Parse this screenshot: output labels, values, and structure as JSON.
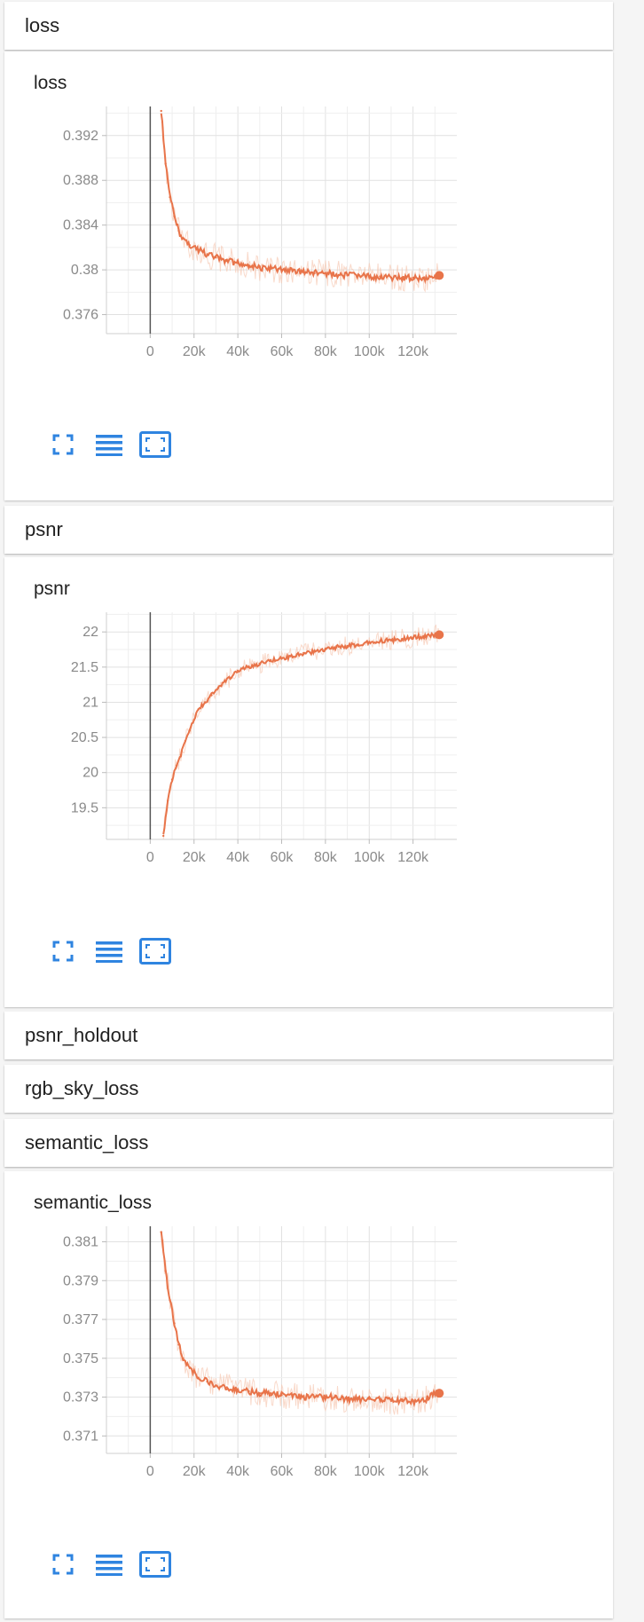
{
  "colors": {
    "series": "#e8744a",
    "series_raw": "#f6c9b4",
    "icon": "#2f84e0",
    "grid": "#e1e1e1",
    "axis": "#555555"
  },
  "sections": [
    {
      "header": "loss",
      "card_title": "loss"
    },
    {
      "header": "psnr",
      "card_title": "psnr"
    },
    {
      "header": "psnr_holdout"
    },
    {
      "header": "rgb_sky_loss"
    },
    {
      "header": "semantic_loss",
      "card_title": "semantic_loss"
    }
  ],
  "controls": {
    "icons": [
      "fullscreen-icon",
      "data-list-icon",
      "fit-domain-icon"
    ]
  },
  "chart_data": [
    {
      "type": "line",
      "title": "loss",
      "xlabel": "",
      "ylabel": "",
      "xlim": [
        -20000,
        140000
      ],
      "ylim": [
        0.3743,
        0.3946
      ],
      "x_ticks": [
        0,
        20000,
        40000,
        60000,
        80000,
        100000,
        120000
      ],
      "x_tick_labels": [
        "0",
        "20k",
        "40k",
        "60k",
        "80k",
        "100k",
        "120k"
      ],
      "y_ticks": [
        0.376,
        0.38,
        0.384,
        0.388,
        0.392
      ],
      "y_tick_labels": [
        "0.376",
        "0.38",
        "0.384",
        "0.388",
        "0.392"
      ],
      "grid": true,
      "series": [
        {
          "x": [
            5000,
            7000,
            9000,
            11000,
            13000,
            15000,
            18000,
            22000,
            26000,
            30000,
            35000,
            40000,
            45000,
            50000,
            55000,
            60000,
            65000,
            70000,
            75000,
            80000,
            85000,
            90000,
            95000,
            100000,
            105000,
            110000,
            115000,
            120000,
            125000,
            130000,
            132000
          ],
          "y": [
            0.3942,
            0.3895,
            0.3865,
            0.3848,
            0.3835,
            0.3828,
            0.3822,
            0.3818,
            0.3814,
            0.3811,
            0.3808,
            0.3806,
            0.3804,
            0.3802,
            0.3801,
            0.38,
            0.3799,
            0.3798,
            0.3797,
            0.3797,
            0.3796,
            0.3795,
            0.3795,
            0.3794,
            0.3794,
            0.3793,
            0.3793,
            0.3793,
            0.3792,
            0.3795,
            0.3795
          ]
        }
      ]
    },
    {
      "type": "line",
      "title": "psnr",
      "xlabel": "",
      "ylabel": "",
      "xlim": [
        -20000,
        140000
      ],
      "ylim": [
        19.05,
        22.28
      ],
      "x_ticks": [
        0,
        20000,
        40000,
        60000,
        80000,
        100000,
        120000
      ],
      "x_tick_labels": [
        "0",
        "20k",
        "40k",
        "60k",
        "80k",
        "100k",
        "120k"
      ],
      "y_ticks": [
        19.5,
        20,
        20.5,
        21,
        21.5,
        22
      ],
      "y_tick_labels": [
        "19.5",
        "20",
        "20.5",
        "21",
        "21.5",
        "22"
      ],
      "grid": true,
      "series": [
        {
          "x": [
            6000,
            8000,
            10000,
            12000,
            14000,
            16000,
            18000,
            20000,
            22000,
            25000,
            28000,
            31000,
            34000,
            37000,
            40000,
            45000,
            50000,
            55000,
            60000,
            65000,
            70000,
            75000,
            80000,
            85000,
            90000,
            95000,
            100000,
            105000,
            110000,
            115000,
            120000,
            125000,
            130000,
            132000
          ],
          "y": [
            19.1,
            19.6,
            19.9,
            20.1,
            20.25,
            20.45,
            20.6,
            20.75,
            20.9,
            21.0,
            21.1,
            21.2,
            21.3,
            21.35,
            21.45,
            21.5,
            21.55,
            21.6,
            21.62,
            21.65,
            21.7,
            21.72,
            21.75,
            21.78,
            21.8,
            21.82,
            21.85,
            21.87,
            21.88,
            21.9,
            21.92,
            21.94,
            21.95,
            21.96
          ]
        }
      ]
    },
    {
      "type": "line",
      "title": "semantic_loss",
      "xlabel": "",
      "ylabel": "",
      "xlim": [
        -20000,
        140000
      ],
      "ylim": [
        0.3701,
        0.3818
      ],
      "x_ticks": [
        0,
        20000,
        40000,
        60000,
        80000,
        100000,
        120000
      ],
      "x_tick_labels": [
        "0",
        "20k",
        "40k",
        "60k",
        "80k",
        "100k",
        "120k"
      ],
      "y_ticks": [
        0.371,
        0.373,
        0.375,
        0.377,
        0.379,
        0.381
      ],
      "y_tick_labels": [
        "0.371",
        "0.373",
        "0.375",
        "0.377",
        "0.379",
        "0.381"
      ],
      "grid": true,
      "series": [
        {
          "x": [
            5000,
            7000,
            9000,
            11000,
            13000,
            15000,
            18000,
            22000,
            26000,
            30000,
            35000,
            40000,
            45000,
            50000,
            55000,
            60000,
            65000,
            70000,
            75000,
            80000,
            85000,
            90000,
            95000,
            100000,
            105000,
            110000,
            115000,
            120000,
            125000,
            130000,
            132000
          ],
          "y": [
            0.3815,
            0.3795,
            0.378,
            0.3768,
            0.3757,
            0.375,
            0.3745,
            0.374,
            0.3738,
            0.3736,
            0.3735,
            0.3734,
            0.3733,
            0.3732,
            0.3732,
            0.3731,
            0.3731,
            0.373,
            0.373,
            0.373,
            0.373,
            0.3729,
            0.3729,
            0.3729,
            0.3729,
            0.3728,
            0.3728,
            0.3728,
            0.3728,
            0.3732,
            0.3732
          ]
        }
      ]
    }
  ]
}
